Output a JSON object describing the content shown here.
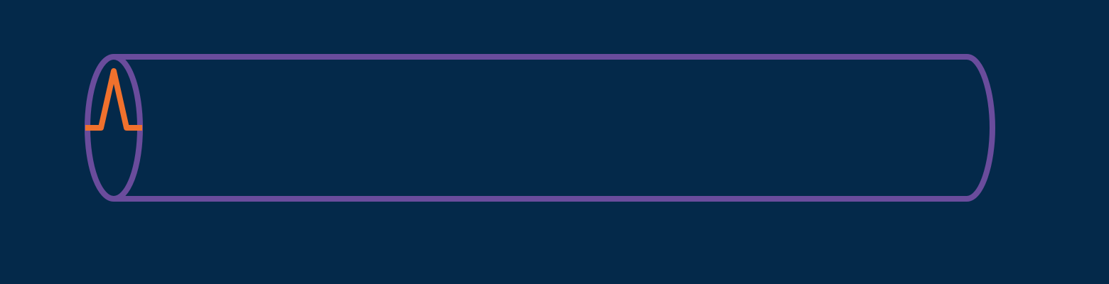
{
  "colors": {
    "background": "#04294A",
    "tube_outline": "#6A4C9C",
    "pulse": "#F0712D"
  },
  "shapes": {
    "tube": "cylinder-outline",
    "pulse": "single-triangular-peak"
  }
}
